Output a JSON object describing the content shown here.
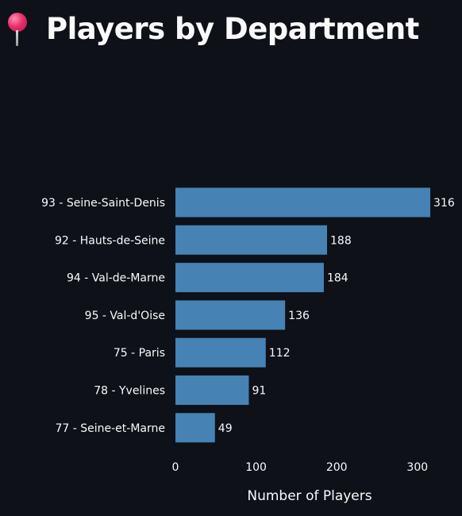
{
  "header": {
    "icon": "round-pushpin-icon",
    "title": "Players by Department"
  },
  "colors": {
    "background": "#0e1117",
    "bar": "#4682b4",
    "text": "#fafafa"
  },
  "chart_data": {
    "type": "bar",
    "orientation": "horizontal",
    "title": "",
    "xlabel": "Number of Players",
    "ylabel": "",
    "categories": [
      "93 - Seine-Saint-Denis",
      "92 - Hauts-de-Seine",
      "94 - Val-de-Marne",
      "95 - Val-d'Oise",
      "75 - Paris",
      "78 - Yvelines",
      "77 - Seine-et-Marne"
    ],
    "values": [
      316,
      188,
      184,
      136,
      112,
      91,
      49
    ],
    "data_labels": [
      "316",
      "188",
      "184",
      "136",
      "112",
      "91",
      "49"
    ],
    "xlim": [
      0,
      330
    ],
    "xticks": [
      0,
      100,
      200,
      300
    ],
    "grid": false,
    "legend": "none"
  }
}
